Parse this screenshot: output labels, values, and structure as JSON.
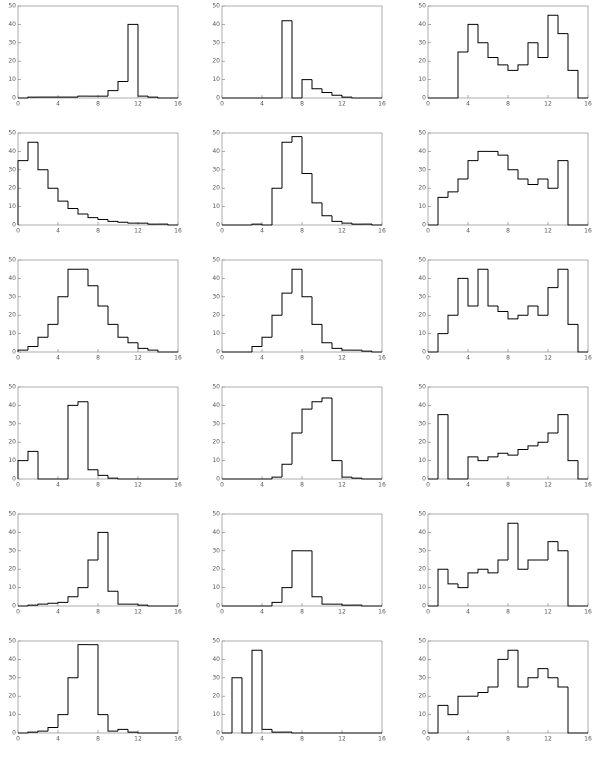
{
  "chart_data": [
    {
      "type": "histogram",
      "bins": [
        0,
        1,
        2,
        3,
        4,
        5,
        6,
        7,
        8,
        9,
        10,
        11,
        12,
        13,
        14,
        15,
        16
      ],
      "counts": [
        0,
        0.5,
        0.5,
        0.5,
        0.5,
        0.5,
        1,
        1,
        1,
        4,
        9,
        40,
        1,
        0.5,
        0,
        0
      ],
      "xlim": [
        0,
        16
      ],
      "xticks": [
        0,
        4,
        8,
        12,
        16
      ],
      "ylim": [
        0,
        50
      ],
      "yticks": [
        0,
        10,
        20,
        30,
        40,
        50
      ],
      "color": "#000000"
    },
    {
      "type": "histogram",
      "bins": [
        0,
        1,
        2,
        3,
        4,
        5,
        6,
        7,
        8,
        9,
        10,
        11,
        12,
        13,
        14,
        15,
        16
      ],
      "counts": [
        0,
        0,
        0,
        0,
        0,
        0,
        42,
        0,
        10,
        5,
        3,
        1.5,
        0.5,
        0,
        0,
        0
      ],
      "xlim": [
        0,
        16
      ],
      "xticks": [
        0,
        4,
        8,
        12,
        16
      ],
      "ylim": [
        0,
        50
      ],
      "yticks": [
        0,
        10,
        20,
        30,
        40,
        50
      ],
      "color": "#000000"
    },
    {
      "type": "histogram",
      "bins": [
        0,
        1,
        2,
        3,
        4,
        5,
        6,
        7,
        8,
        9,
        10,
        11,
        12,
        13,
        14,
        15,
        16
      ],
      "counts": [
        0,
        0,
        0,
        25,
        40,
        30,
        22,
        18,
        15,
        18,
        30,
        22,
        45,
        35,
        15,
        0
      ],
      "xlim": [
        0,
        16
      ],
      "xticks": [
        0,
        4,
        8,
        12,
        16
      ],
      "ylim": [
        0,
        50
      ],
      "yticks": [
        0,
        10,
        20,
        30,
        40,
        50
      ],
      "color": "#000000"
    },
    {
      "type": "histogram",
      "bins": [
        0,
        1,
        2,
        3,
        4,
        5,
        6,
        7,
        8,
        9,
        10,
        11,
        12,
        13,
        14,
        15,
        16
      ],
      "counts": [
        35,
        45,
        30,
        20,
        13,
        9,
        6,
        4,
        3,
        2,
        1.5,
        1,
        1,
        0.5,
        0.5,
        0
      ],
      "xlim": [
        0,
        16
      ],
      "xticks": [
        0,
        4,
        8,
        12,
        16
      ],
      "ylim": [
        0,
        50
      ],
      "yticks": [
        0,
        10,
        20,
        30,
        40,
        50
      ],
      "color": "#000000"
    },
    {
      "type": "histogram",
      "bins": [
        0,
        1,
        2,
        3,
        4,
        5,
        6,
        7,
        8,
        9,
        10,
        11,
        12,
        13,
        14,
        15,
        16
      ],
      "counts": [
        0,
        0,
        0,
        0.5,
        0,
        20,
        45,
        48,
        28,
        12,
        5,
        2,
        1,
        0.5,
        0.5,
        0
      ],
      "xlim": [
        0,
        16
      ],
      "xticks": [
        0,
        4,
        8,
        12,
        16
      ],
      "ylim": [
        0,
        50
      ],
      "yticks": [
        0,
        10,
        20,
        30,
        40,
        50
      ],
      "color": "#000000"
    },
    {
      "type": "histogram",
      "bins": [
        0,
        1,
        2,
        3,
        4,
        5,
        6,
        7,
        8,
        9,
        10,
        11,
        12,
        13,
        14,
        15,
        16
      ],
      "counts": [
        0,
        15,
        18,
        25,
        35,
        40,
        40,
        38,
        30,
        25,
        22,
        25,
        20,
        35,
        0,
        0
      ],
      "xlim": [
        0,
        16
      ],
      "xticks": [
        0,
        4,
        8,
        12,
        16
      ],
      "ylim": [
        0,
        50
      ],
      "yticks": [
        0,
        10,
        20,
        30,
        40,
        50
      ],
      "color": "#000000"
    },
    {
      "type": "histogram",
      "bins": [
        0,
        1,
        2,
        3,
        4,
        5,
        6,
        7,
        8,
        9,
        10,
        11,
        12,
        13,
        14,
        15,
        16
      ],
      "counts": [
        1,
        3,
        8,
        15,
        30,
        45,
        45,
        36,
        25,
        15,
        8,
        5,
        2,
        1,
        0,
        0
      ],
      "xlim": [
        0,
        16
      ],
      "xticks": [
        0,
        4,
        8,
        12,
        16
      ],
      "ylim": [
        0,
        50
      ],
      "yticks": [
        0,
        10,
        20,
        30,
        40,
        50
      ],
      "color": "#000000"
    },
    {
      "type": "histogram",
      "bins": [
        0,
        1,
        2,
        3,
        4,
        5,
        6,
        7,
        8,
        9,
        10,
        11,
        12,
        13,
        14,
        15,
        16
      ],
      "counts": [
        0,
        0,
        0,
        3,
        8,
        20,
        32,
        45,
        30,
        15,
        5,
        2,
        1,
        1,
        0.5,
        0
      ],
      "xlim": [
        0,
        16
      ],
      "xticks": [
        0,
        4,
        8,
        12,
        16
      ],
      "ylim": [
        0,
        50
      ],
      "yticks": [
        0,
        10,
        20,
        30,
        40,
        50
      ],
      "color": "#000000"
    },
    {
      "type": "histogram",
      "bins": [
        0,
        1,
        2,
        3,
        4,
        5,
        6,
        7,
        8,
        9,
        10,
        11,
        12,
        13,
        14,
        15,
        16
      ],
      "counts": [
        0,
        10,
        20,
        40,
        25,
        45,
        25,
        22,
        18,
        20,
        25,
        20,
        35,
        45,
        15,
        0
      ],
      "xlim": [
        0,
        16
      ],
      "xticks": [
        0,
        4,
        8,
        12,
        16
      ],
      "ylim": [
        0,
        50
      ],
      "yticks": [
        0,
        10,
        20,
        30,
        40,
        50
      ],
      "color": "#000000"
    },
    {
      "type": "histogram",
      "bins": [
        0,
        1,
        2,
        3,
        4,
        5,
        6,
        7,
        8,
        9,
        10,
        11,
        12,
        13,
        14,
        15,
        16
      ],
      "counts": [
        10,
        15,
        0,
        0,
        0,
        40,
        42,
        5,
        2,
        0.5,
        0,
        0,
        0,
        0,
        0,
        0
      ],
      "xlim": [
        0,
        16
      ],
      "xticks": [
        0,
        4,
        8,
        12,
        16
      ],
      "ylim": [
        0,
        50
      ],
      "yticks": [
        0,
        10,
        20,
        30,
        40,
        50
      ],
      "color": "#000000"
    },
    {
      "type": "histogram",
      "bins": [
        0,
        1,
        2,
        3,
        4,
        5,
        6,
        7,
        8,
        9,
        10,
        11,
        12,
        13,
        14,
        15,
        16
      ],
      "counts": [
        0,
        0,
        0,
        0,
        0,
        1,
        8,
        25,
        38,
        42,
        44,
        10,
        1,
        0.5,
        0,
        0
      ],
      "xlim": [
        0,
        16
      ],
      "xticks": [
        0,
        4,
        8,
        12,
        16
      ],
      "ylim": [
        0,
        50
      ],
      "yticks": [
        0,
        10,
        20,
        30,
        40,
        50
      ],
      "color": "#000000"
    },
    {
      "type": "histogram",
      "bins": [
        0,
        1,
        2,
        3,
        4,
        5,
        6,
        7,
        8,
        9,
        10,
        11,
        12,
        13,
        14,
        15,
        16
      ],
      "counts": [
        0,
        35,
        0,
        0,
        12,
        10,
        12,
        14,
        13,
        16,
        18,
        20,
        25,
        35,
        10,
        0
      ],
      "xlim": [
        0,
        16
      ],
      "xticks": [
        0,
        4,
        8,
        12,
        16
      ],
      "ylim": [
        0,
        50
      ],
      "yticks": [
        0,
        10,
        20,
        30,
        40,
        50
      ],
      "color": "#000000"
    },
    {
      "type": "histogram",
      "bins": [
        0,
        1,
        2,
        3,
        4,
        5,
        6,
        7,
        8,
        9,
        10,
        11,
        12,
        13,
        14,
        15,
        16
      ],
      "counts": [
        0,
        0.5,
        1,
        1.5,
        2,
        5,
        10,
        25,
        40,
        8,
        1,
        1,
        0.5,
        0,
        0,
        0
      ],
      "xlim": [
        0,
        16
      ],
      "xticks": [
        0,
        4,
        8,
        12,
        16
      ],
      "ylim": [
        0,
        50
      ],
      "yticks": [
        0,
        10,
        20,
        30,
        40,
        50
      ],
      "color": "#000000"
    },
    {
      "type": "histogram",
      "bins": [
        0,
        1,
        2,
        3,
        4,
        5,
        6,
        7,
        8,
        9,
        10,
        11,
        12,
        13,
        14,
        15,
        16
      ],
      "counts": [
        0,
        0,
        0,
        0,
        0,
        2,
        10,
        30,
        30,
        5,
        1,
        1,
        0.5,
        0.5,
        0,
        0
      ],
      "xlim": [
        0,
        16
      ],
      "xticks": [
        0,
        4,
        8,
        12,
        16
      ],
      "ylim": [
        0,
        50
      ],
      "yticks": [
        0,
        10,
        20,
        30,
        40,
        50
      ],
      "color": "#000000"
    },
    {
      "type": "histogram",
      "bins": [
        0,
        1,
        2,
        3,
        4,
        5,
        6,
        7,
        8,
        9,
        10,
        11,
        12,
        13,
        14,
        15,
        16
      ],
      "counts": [
        0,
        20,
        12,
        10,
        18,
        20,
        18,
        25,
        45,
        20,
        25,
        25,
        35,
        30,
        0,
        0
      ],
      "xlim": [
        0,
        16
      ],
      "xticks": [
        0,
        4,
        8,
        12,
        16
      ],
      "ylim": [
        0,
        50
      ],
      "yticks": [
        0,
        10,
        20,
        30,
        40,
        50
      ],
      "color": "#000000"
    },
    {
      "type": "histogram",
      "bins": [
        0,
        1,
        2,
        3,
        4,
        5,
        6,
        7,
        8,
        9,
        10,
        11,
        12,
        13,
        14,
        15,
        16
      ],
      "counts": [
        0,
        0.5,
        1,
        3,
        10,
        30,
        48,
        48,
        10,
        1,
        2,
        0.5,
        0,
        0,
        0,
        0
      ],
      "xlim": [
        0,
        16
      ],
      "xticks": [
        0,
        4,
        8,
        12,
        16
      ],
      "ylim": [
        0,
        50
      ],
      "yticks": [
        0,
        10,
        20,
        30,
        40,
        50
      ],
      "color": "#000000"
    },
    {
      "type": "histogram",
      "bins": [
        0,
        1,
        2,
        3,
        4,
        5,
        6,
        7,
        8,
        9,
        10,
        11,
        12,
        13,
        14,
        15,
        16
      ],
      "counts": [
        0,
        30,
        0,
        45,
        2,
        0.5,
        0.5,
        0,
        0,
        0,
        0,
        0,
        0,
        0,
        0,
        0
      ],
      "xlim": [
        0,
        16
      ],
      "xticks": [
        0,
        4,
        8,
        12,
        16
      ],
      "ylim": [
        0,
        50
      ],
      "yticks": [
        0,
        10,
        20,
        30,
        40,
        50
      ],
      "color": "#000000"
    },
    {
      "type": "histogram",
      "bins": [
        0,
        1,
        2,
        3,
        4,
        5,
        6,
        7,
        8,
        9,
        10,
        11,
        12,
        13,
        14,
        15,
        16
      ],
      "counts": [
        0,
        15,
        10,
        20,
        20,
        22,
        25,
        40,
        45,
        25,
        30,
        35,
        30,
        25,
        0,
        0
      ],
      "xlim": [
        0,
        16
      ],
      "xticks": [
        0,
        4,
        8,
        12,
        16
      ],
      "ylim": [
        0,
        50
      ],
      "yticks": [
        0,
        10,
        20,
        30,
        40,
        50
      ],
      "color": "#000000"
    }
  ]
}
